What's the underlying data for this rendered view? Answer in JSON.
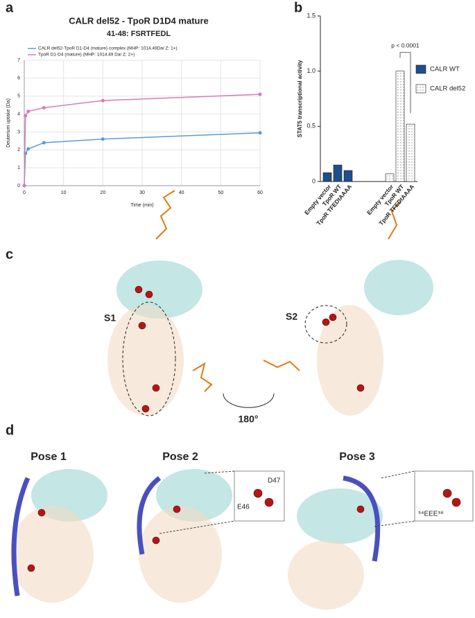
{
  "chart_data": [
    {
      "type": "line",
      "panel_label": "a",
      "title": "CALR del52 - TpoR D1D4 mature",
      "subtitle": "41-48: FSRTFEDL",
      "x": [
        0,
        0.3,
        1,
        5,
        20,
        60
      ],
      "series": [
        {
          "name": "CALR del52-TpoR D1-D4 (mature) complex (MHP: 1014.49Da/ Z: 1+)",
          "color": "#5b9bd5",
          "values": [
            0,
            1.8,
            2.05,
            2.4,
            2.6,
            2.95
          ]
        },
        {
          "name": "TpoR D1-D4 (mature) (MHP: 1014.49 Da/ Z: 2+)",
          "color": "#d97bb6",
          "values": [
            0,
            3.9,
            4.15,
            4.35,
            4.75,
            5.1
          ]
        }
      ],
      "xlabel": "Time (min)",
      "ylabel": "Deuterium uptake (Da)",
      "xlim": [
        0,
        60
      ],
      "xticks": [
        0,
        10,
        20,
        30,
        40,
        50,
        60
      ],
      "ylim": [
        0,
        7
      ],
      "yticks": [
        0,
        1,
        2,
        3,
        4,
        5,
        6,
        7
      ],
      "grid": true
    },
    {
      "type": "bar",
      "panel_label": "b",
      "categories": [
        "Empty vector",
        "TpoR WT",
        "TpoR TFEDtAAAA",
        "Empty vector",
        "TpoR WT",
        "TpoR TFEDtAAAA"
      ],
      "series": [
        {
          "name": "CALR WT",
          "color": "#1f4e8c",
          "fill": "solid",
          "values": [
            0.08,
            0.15,
            0.1,
            null,
            null,
            null
          ]
        },
        {
          "name": "CALR del52",
          "color": "#5a5a5a",
          "fill": "dots",
          "values": [
            null,
            null,
            null,
            0.07,
            1.0,
            0.52
          ]
        }
      ],
      "ylabel": "STAT5 transcriptional activity",
      "ylim": [
        0,
        1.5
      ],
      "yticks": [
        0,
        0.5,
        {
          "value": 1,
          "label": "1.0"
        },
        1.5
      ],
      "annotation": "p < 0.0001"
    }
  ],
  "panel_c": {
    "label": "c",
    "sites": [
      "S1",
      "S2"
    ],
    "rotation": "180°"
  },
  "panel_d": {
    "label": "d",
    "poses": [
      "Pose 1",
      "Pose 2",
      "Pose 3"
    ],
    "inset_2": [
      "D47",
      "E46"
    ],
    "inset_3": "⁵⁴EEE⁵⁶"
  }
}
